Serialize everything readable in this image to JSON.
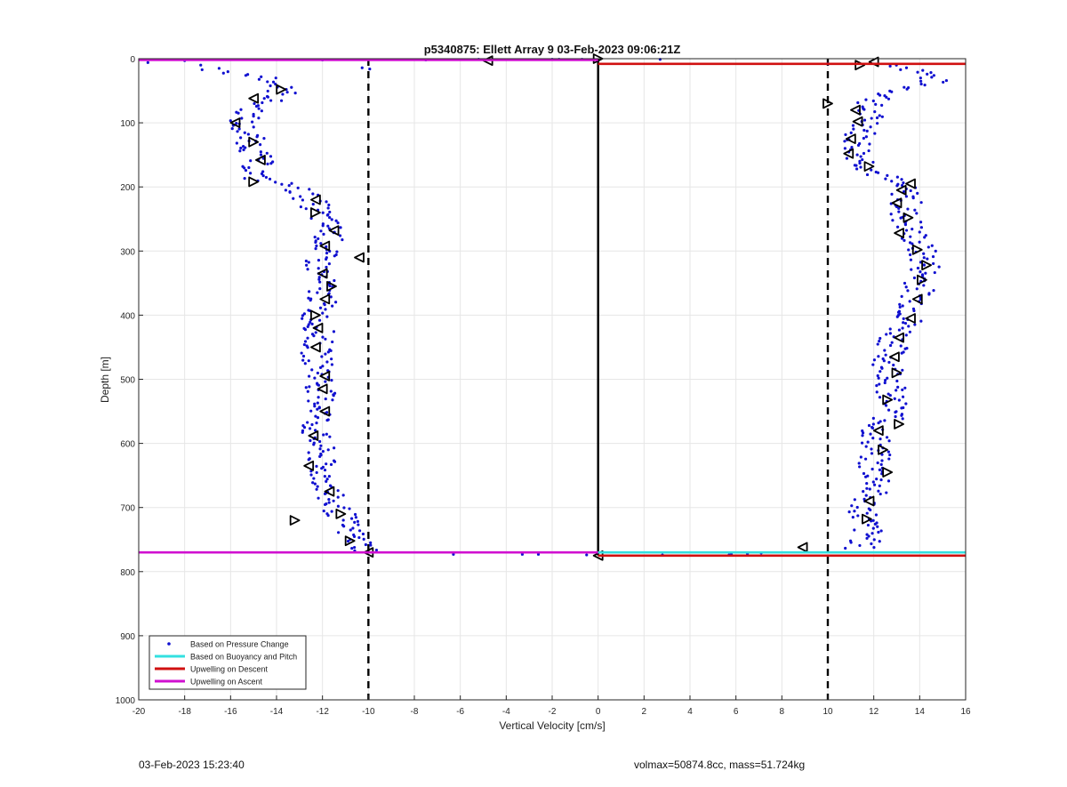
{
  "chart_data": {
    "type": "scatter",
    "title": "p5340875: Ellett Array 9 03-Feb-2023 09:06:21Z",
    "xlabel": "Vertical Velocity [cm/s]",
    "ylabel": "Depth [m]",
    "xlim": [
      -20,
      16
    ],
    "ylim": [
      0,
      1000
    ],
    "y_reversed": true,
    "grid": true,
    "xticks": [
      -20,
      -18,
      -16,
      -14,
      -12,
      -10,
      -8,
      -6,
      -4,
      -2,
      0,
      2,
      4,
      6,
      8,
      10,
      12,
      14,
      16
    ],
    "yticks": [
      0,
      100,
      200,
      300,
      400,
      500,
      600,
      700,
      800,
      900,
      1000
    ],
    "xtick_labels": [
      "-20",
      "-18",
      "-16",
      "-14",
      "-12",
      "-10",
      "-8",
      "-6",
      "-4",
      "-2",
      "0",
      "2",
      "4",
      "6",
      "8",
      "10",
      "12",
      "14",
      "16"
    ],
    "ytick_labels": [
      "0",
      "100",
      "200",
      "300",
      "400",
      "500",
      "600",
      "700",
      "800",
      "900",
      "1000"
    ],
    "legend_position": "bottom-left",
    "legend": [
      {
        "label": "Based on Pressure Change",
        "color": "#1010d0",
        "kind": "dot"
      },
      {
        "label": "Based on Buoyancy and Pitch",
        "color": "#33e0e0",
        "kind": "line"
      },
      {
        "label": "Upwelling on Descent",
        "color": "#d01010",
        "kind": "line"
      },
      {
        "label": "Upwelling on Ascent",
        "color": "#d010d0",
        "kind": "line"
      }
    ],
    "reference_lines": [
      {
        "axis": "x",
        "value": -10,
        "style": "dashed",
        "color": "#000000"
      },
      {
        "axis": "x",
        "value": 10,
        "style": "dashed",
        "color": "#000000"
      },
      {
        "axis": "x",
        "value": 0,
        "style": "solid",
        "color": "#000000",
        "y_range": [
          0,
          775
        ]
      }
    ],
    "series_lines": [
      {
        "name": "Upwelling on Ascent",
        "color": "#d010d0",
        "segments": [
          [
            [
              -20,
              2
            ],
            [
              0,
              2
            ]
          ],
          [
            [
              -20,
              770
            ],
            [
              0,
              770
            ]
          ]
        ]
      },
      {
        "name": "Upwelling on Descent",
        "color": "#d01010",
        "segments": [
          [
            [
              0,
              8
            ],
            [
              16,
              8
            ]
          ],
          [
            [
              0,
              775
            ],
            [
              16,
              775
            ]
          ]
        ]
      },
      {
        "name": "Based on Buoyancy and Pitch",
        "color": "#33e0e0",
        "segments": [
          [
            [
              0,
              770
            ],
            [
              16,
              770
            ]
          ]
        ]
      }
    ],
    "descent_profile": [
      [
        12.4,
        5
      ],
      [
        14.2,
        20
      ],
      [
        14.6,
        35
      ],
      [
        12.7,
        55
      ],
      [
        11.6,
        75
      ],
      [
        11.9,
        100
      ],
      [
        11.3,
        125
      ],
      [
        11.4,
        150
      ],
      [
        12.0,
        175
      ],
      [
        13.0,
        195
      ],
      [
        13.5,
        215
      ],
      [
        13.3,
        240
      ],
      [
        13.6,
        265
      ],
      [
        14.0,
        295
      ],
      [
        14.3,
        325
      ],
      [
        14.0,
        355
      ],
      [
        13.8,
        385
      ],
      [
        13.5,
        410
      ],
      [
        12.9,
        440
      ],
      [
        12.6,
        470
      ],
      [
        12.9,
        500
      ],
      [
        12.6,
        525
      ],
      [
        12.9,
        550
      ],
      [
        12.1,
        580
      ],
      [
        12.1,
        610
      ],
      [
        11.9,
        635
      ],
      [
        12.3,
        660
      ],
      [
        11.6,
        690
      ],
      [
        11.6,
        720
      ],
      [
        11.8,
        745
      ],
      [
        11.3,
        765
      ]
    ],
    "ascent_profile": [
      [
        -17.0,
        18
      ],
      [
        -14.2,
        30
      ],
      [
        -13.7,
        55
      ],
      [
        -14.9,
        75
      ],
      [
        -15.6,
        100
      ],
      [
        -15.1,
        130
      ],
      [
        -14.8,
        160
      ],
      [
        -15.0,
        185
      ],
      [
        -13.2,
        200
      ],
      [
        -12.4,
        225
      ],
      [
        -12.0,
        250
      ],
      [
        -11.6,
        270
      ],
      [
        -11.9,
        295
      ],
      [
        -12.2,
        320
      ],
      [
        -12.1,
        345
      ],
      [
        -12.0,
        375
      ],
      [
        -12.3,
        400
      ],
      [
        -12.1,
        430
      ],
      [
        -12.3,
        460
      ],
      [
        -12.0,
        490
      ],
      [
        -12.1,
        520
      ],
      [
        -12.0,
        550
      ],
      [
        -12.4,
        580
      ],
      [
        -12.1,
        610
      ],
      [
        -12.1,
        640
      ],
      [
        -11.8,
        665
      ],
      [
        -11.7,
        690
      ],
      [
        -11.2,
        710
      ],
      [
        -10.9,
        735
      ],
      [
        -10.4,
        755
      ],
      [
        -10.0,
        768
      ]
    ],
    "surface_points": [
      [
        -19.6,
        6
      ],
      [
        -18.0,
        3
      ],
      [
        -17.3,
        10
      ],
      [
        -16.5,
        15
      ],
      [
        -12,
        2
      ],
      [
        -7.5,
        2
      ],
      [
        -5.2,
        1
      ],
      [
        -2,
        1
      ],
      [
        -1.7,
        1
      ],
      [
        -0.7,
        1
      ],
      [
        2.7,
        1
      ],
      [
        10.0,
        8
      ]
    ],
    "bottom_points": [
      [
        -6.3,
        773
      ],
      [
        -3.3,
        773
      ],
      [
        -2.6,
        773
      ],
      [
        -0.5,
        774
      ],
      [
        2.8,
        774
      ],
      [
        5.7,
        774
      ],
      [
        5.8,
        773
      ],
      [
        6.5,
        772
      ],
      [
        7.1,
        771
      ]
    ],
    "descent_markers": [
      [
        12.0,
        5,
        "left"
      ],
      [
        11.4,
        10,
        "right"
      ],
      [
        10.0,
        70,
        "right"
      ],
      [
        11.2,
        80,
        "left"
      ],
      [
        11.3,
        98,
        "left"
      ],
      [
        11.0,
        125,
        "left"
      ],
      [
        10.9,
        148,
        "left"
      ],
      [
        11.8,
        168,
        "right"
      ],
      [
        13.6,
        195,
        "left"
      ],
      [
        13.2,
        205,
        "left"
      ],
      [
        13.0,
        225,
        "left"
      ],
      [
        13.5,
        248,
        "right"
      ],
      [
        13.1,
        272,
        "left"
      ],
      [
        13.9,
        298,
        "right"
      ],
      [
        14.3,
        322,
        "right"
      ],
      [
        14.1,
        345,
        "right"
      ],
      [
        13.9,
        375,
        "left"
      ],
      [
        13.6,
        405,
        "left"
      ],
      [
        13.1,
        435,
        "left"
      ],
      [
        12.9,
        465,
        "left"
      ],
      [
        13.0,
        490,
        "right"
      ],
      [
        12.6,
        532,
        "right"
      ],
      [
        13.1,
        570,
        "right"
      ],
      [
        12.2,
        580,
        "left"
      ],
      [
        12.4,
        610,
        "right"
      ],
      [
        12.6,
        645,
        "right"
      ],
      [
        11.8,
        690,
        "left"
      ],
      [
        11.7,
        718,
        "right"
      ],
      [
        8.9,
        762,
        "left"
      ]
    ],
    "ascent_markers": [
      [
        -4.8,
        3,
        "left"
      ],
      [
        0.0,
        0,
        "right"
      ],
      [
        -13.8,
        48,
        "right"
      ],
      [
        -15.0,
        62,
        "left"
      ],
      [
        -15.8,
        100,
        "left"
      ],
      [
        -15.0,
        130,
        "right"
      ],
      [
        -14.7,
        158,
        "left"
      ],
      [
        -15.0,
        192,
        "right"
      ],
      [
        -12.3,
        220,
        "left"
      ],
      [
        -12.3,
        240,
        "right"
      ],
      [
        -11.5,
        268,
        "left"
      ],
      [
        -11.9,
        292,
        "left"
      ],
      [
        -10.4,
        310,
        "left"
      ],
      [
        -12.0,
        335,
        "left"
      ],
      [
        -11.6,
        355,
        "right"
      ],
      [
        -11.9,
        375,
        "left"
      ],
      [
        -12.3,
        400,
        "right"
      ],
      [
        -12.2,
        420,
        "left"
      ],
      [
        -12.3,
        450,
        "left"
      ],
      [
        -11.9,
        495,
        "left"
      ],
      [
        -12.0,
        515,
        "left"
      ],
      [
        -11.9,
        550,
        "left"
      ],
      [
        -12.4,
        588,
        "left"
      ],
      [
        -12.6,
        635,
        "left"
      ],
      [
        -11.7,
        675,
        "left"
      ],
      [
        -11.2,
        710,
        "right"
      ],
      [
        -10.8,
        752,
        "right"
      ],
      [
        -13.2,
        720,
        "right"
      ],
      [
        -10.0,
        770,
        "left"
      ],
      [
        0.0,
        775,
        "left"
      ]
    ]
  },
  "footer": {
    "timestamp": "03-Feb-2023 15:23:40",
    "info": "volmax=50874.8cc, mass=51.724kg"
  }
}
